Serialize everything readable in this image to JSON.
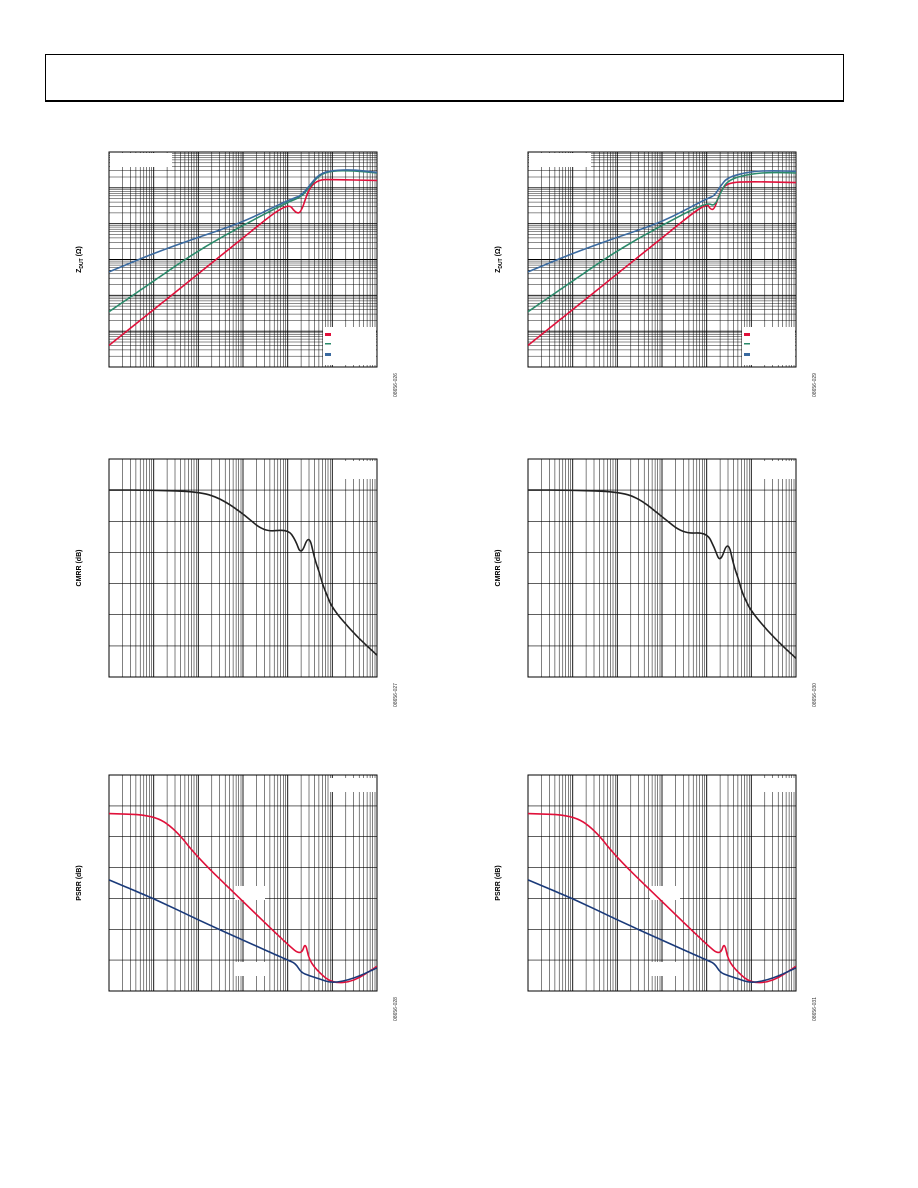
{
  "header": {
    "title": ""
  },
  "chart_data": [
    {
      "type": "line",
      "id": "z-left",
      "ylabel_main": "Z",
      "ylabel_sub": "DUT",
      "ylabel_unit": " (Ω)",
      "code": "08656-026",
      "xscale": "log",
      "xlim": [
        1,
        1000000
      ],
      "yscale": "log",
      "ylim": [
        1,
        1000000
      ],
      "grid": true,
      "legend_position": "bottom-right",
      "colors": {
        "series1": "#e0103a",
        "series2": "#2a8a6a",
        "series3": "#3a6aa0"
      },
      "series": [
        {
          "x": [
            1,
            10,
            100,
            1000,
            10000,
            15000,
            20000,
            30000,
            50000,
            100000,
            1000000
          ],
          "y": [
            4,
            40,
            400,
            4000,
            40000,
            20000,
            20000,
            100000,
            170000,
            170000,
            160000
          ]
        },
        {
          "x": [
            1,
            10,
            100,
            1000,
            10000,
            20000,
            30000,
            50000,
            100000,
            300000,
            1000000
          ],
          "y": [
            35,
            250,
            1800,
            9000,
            40000,
            55000,
            100000,
            230000,
            300000,
            300000,
            260000
          ]
        },
        {
          "x": [
            1,
            10,
            100,
            1000,
            10000,
            20000,
            30000,
            50000,
            100000,
            300000,
            1000000
          ],
          "y": [
            450,
            1500,
            4200,
            11000,
            45000,
            60000,
            110000,
            240000,
            310000,
            320000,
            270000
          ]
        }
      ]
    },
    {
      "type": "line",
      "id": "z-right",
      "ylabel_main": "Z",
      "ylabel_sub": "DUT",
      "ylabel_unit": " (Ω)",
      "code": "08656-029",
      "xscale": "log",
      "xlim": [
        1,
        1000000
      ],
      "yscale": "log",
      "ylim": [
        1,
        1000000
      ],
      "grid": true,
      "legend_position": "bottom-right",
      "colors": {
        "series1": "#e0103a",
        "series2": "#2a8a6a",
        "series3": "#3a6aa0"
      },
      "series": [
        {
          "x": [
            1,
            10,
            100,
            1000,
            10000,
            12000,
            15000,
            20000,
            30000,
            100000,
            1000000
          ],
          "y": [
            4,
            40,
            400,
            4000,
            40000,
            25000,
            25000,
            80000,
            140000,
            150000,
            140000
          ]
        },
        {
          "x": [
            1,
            10,
            100,
            1000,
            10000,
            15000,
            20000,
            30000,
            100000,
            300000,
            1000000
          ],
          "y": [
            35,
            250,
            1800,
            9000,
            40000,
            30000,
            70000,
            170000,
            250000,
            270000,
            260000
          ]
        },
        {
          "x": [
            1,
            10,
            100,
            1000,
            10000,
            15000,
            20000,
            30000,
            100000,
            300000,
            1000000
          ],
          "y": [
            450,
            1500,
            4200,
            11000,
            50000,
            60000,
            110000,
            200000,
            290000,
            300000,
            290000
          ]
        }
      ]
    },
    {
      "type": "line",
      "id": "cmrr-left",
      "ylabel_main": "CMRR (dB)",
      "ylabel_sub": "",
      "ylabel_unit": "",
      "code": "08656-027",
      "xscale": "log",
      "xlim": [
        1,
        1000000
      ],
      "yscale": "linear",
      "ylim": [
        0,
        140
      ],
      "grid": true,
      "colors": {
        "series1": "#222222"
      },
      "series": [
        {
          "x": [
            1,
            10,
            100,
            300,
            1000,
            3000,
            10000,
            15000,
            20000,
            30000,
            40000,
            50000,
            60000,
            70000,
            100000,
            300000,
            1000000
          ],
          "y": [
            120,
            120,
            119,
            115,
            105,
            93,
            95,
            88,
            78,
            92,
            76,
            68,
            60,
            55,
            44,
            28,
            14
          ]
        }
      ]
    },
    {
      "type": "line",
      "id": "cmrr-right",
      "ylabel_main": "CMRR (dB)",
      "ylabel_sub": "",
      "ylabel_unit": "",
      "code": "08656-030",
      "xscale": "log",
      "xlim": [
        1,
        1000000
      ],
      "yscale": "linear",
      "ylim": [
        0,
        140
      ],
      "grid": true,
      "colors": {
        "series1": "#222222"
      },
      "series": [
        {
          "x": [
            1,
            10,
            100,
            300,
            1000,
            3000,
            10000,
            15000,
            20000,
            30000,
            40000,
            50000,
            60000,
            70000,
            100000,
            300000,
            1000000
          ],
          "y": [
            120,
            120,
            119,
            115,
            103,
            92,
            93,
            83,
            73,
            88,
            72,
            64,
            56,
            51,
            42,
            26,
            12
          ]
        }
      ]
    },
    {
      "type": "line",
      "id": "psrr-left",
      "ylabel_main": "PSRR (dB)",
      "ylabel_sub": "",
      "ylabel_unit": "",
      "code": "08656-028",
      "xscale": "log",
      "xlim": [
        1,
        1000000
      ],
      "yscale": "linear",
      "ylim": [
        0,
        140
      ],
      "grid": true,
      "colors": {
        "series1": "#e0103a",
        "series2": "#1a3a7a"
      },
      "series": [
        {
          "x": [
            1,
            10,
            30,
            100,
            1000,
            10000,
            20000,
            25000,
            30000,
            50000,
            100000,
            300000,
            1000000
          ],
          "y": [
            115,
            114,
            105,
            86,
            58,
            30,
            23,
            32,
            20,
            12,
            5,
            6,
            16
          ]
        },
        {
          "x": [
            1,
            10,
            100,
            1000,
            10000,
            15000,
            20000,
            30000,
            50000,
            100000,
            300000,
            1000000
          ],
          "y": [
            72,
            60,
            46,
            33,
            20,
            18,
            12,
            10,
            8,
            5,
            8,
            15
          ]
        }
      ]
    },
    {
      "type": "line",
      "id": "psrr-right",
      "ylabel_main": "PSRR (dB)",
      "ylabel_sub": "",
      "ylabel_unit": "",
      "code": "08656-031",
      "xscale": "log",
      "xlim": [
        1,
        1000000
      ],
      "yscale": "linear",
      "ylim": [
        0,
        140
      ],
      "grid": true,
      "colors": {
        "series1": "#e0103a",
        "series2": "#1a3a7a"
      },
      "series": [
        {
          "x": [
            1,
            10,
            30,
            100,
            1000,
            10000,
            20000,
            25000,
            30000,
            50000,
            100000,
            300000,
            1000000
          ],
          "y": [
            115,
            114,
            105,
            86,
            58,
            30,
            23,
            32,
            20,
            12,
            5,
            6,
            16
          ]
        },
        {
          "x": [
            1,
            10,
            100,
            1000,
            10000,
            15000,
            20000,
            30000,
            50000,
            100000,
            300000,
            1000000
          ],
          "y": [
            72,
            60,
            46,
            33,
            20,
            18,
            12,
            10,
            8,
            5,
            8,
            15
          ]
        }
      ]
    }
  ]
}
